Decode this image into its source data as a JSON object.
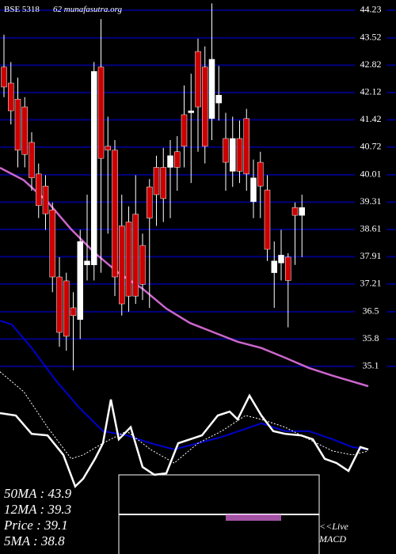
{
  "chart_data": {
    "type": "candlestick",
    "title": "BSE 5318",
    "subtitle": "62 munafasutra.org",
    "ylim": [
      30.29,
      44.49
    ],
    "xlim": [
      -0.6,
      53
    ],
    "yticks": [
      44.23,
      43.52,
      42.82,
      42.12,
      41.42,
      40.72,
      40.01,
      39.31,
      38.61,
      37.91,
      37.21,
      36.5,
      35.8,
      35.1
    ],
    "grid": true,
    "grid_color": "#000080",
    "up_color": "#ffffff",
    "down_color": "#cc0000",
    "open": [
      42.77,
      42.36,
      41.95,
      41.75,
      40.84,
      40.03,
      39.72,
      39.11,
      37.39,
      37.29,
      36.6,
      36.3,
      37.7,
      37.7,
      42.77,
      40.74,
      40.64,
      38.7,
      38.8,
      39.0,
      38.2,
      39.7,
      40.2,
      40.2,
      40.2,
      40.6,
      41.55,
      41.6,
      43.17,
      42.77,
      41.45,
      41.85,
      40.94,
      40.1,
      40.94,
      41.45,
      39.32,
      40.33,
      39.62,
      37.5,
      37.75,
      37.9,
      39.17,
      38.97
    ],
    "high": [
      43.6,
      42.9,
      42.5,
      42.0,
      41.1,
      40.3,
      40.0,
      39.3,
      37.9,
      37.5,
      37.0,
      38.6,
      39.5,
      42.9,
      44.0,
      41.5,
      40.9,
      39.5,
      39.2,
      40.0,
      38.5,
      39.9,
      40.5,
      40.7,
      40.9,
      41.0,
      42.3,
      42.6,
      43.5,
      43.3,
      44.4,
      42.8,
      41.6,
      41.5,
      41.4,
      41.7,
      40.4,
      40.6,
      40.0,
      38.3,
      38.6,
      38.0,
      39.3,
      39.5
    ],
    "low": [
      42.0,
      41.3,
      40.2,
      40.2,
      39.6,
      38.9,
      38.6,
      37.0,
      35.6,
      35.5,
      35.0,
      35.8,
      37.3,
      37.3,
      37.5,
      38.5,
      36.9,
      36.4,
      36.5,
      36.7,
      36.8,
      36.6,
      38.7,
      38.8,
      38.9,
      39.6,
      40.2,
      39.8,
      40.6,
      40.3,
      40.9,
      41.4,
      39.6,
      39.7,
      39.8,
      39.6,
      38.9,
      38.9,
      37.8,
      36.6,
      37.3,
      36.1,
      37.7,
      37.9
    ],
    "close": [
      42.26,
      41.65,
      40.64,
      40.53,
      39.93,
      39.22,
      39.01,
      37.39,
      35.97,
      35.87,
      36.4,
      38.3,
      37.8,
      42.66,
      40.43,
      40.64,
      37.39,
      36.7,
      36.9,
      36.9,
      37.2,
      38.9,
      39.5,
      39.4,
      40.5,
      40.2,
      40.74,
      41.65,
      41.75,
      40.74,
      42.97,
      42.05,
      40.33,
      40.94,
      40.1,
      40.03,
      39.93,
      39.72,
      38.1,
      37.8,
      37.95,
      37.3,
      38.97,
      39.17
    ],
    "lines": [
      {
        "color": "#cc66cc",
        "width": 2.5,
        "x": [
          -0.57,
          2.86,
          6.29,
          9.71,
          13.14,
          16.57,
          20,
          23.43,
          26.86,
          30.29,
          33.71,
          37.14,
          40.57,
          44,
          47.43,
          52.57
        ],
        "values": [
          40.19,
          39.87,
          39.32,
          38.61,
          38.0,
          37.49,
          37.09,
          36.58,
          36.21,
          35.97,
          35.73,
          35.57,
          35.32,
          35.06,
          34.86,
          34.59
        ]
      },
      {
        "color": "#0000cc",
        "width": 2,
        "x": [
          -0.57,
          1.14,
          4,
          7.43,
          10.86,
          14.29,
          17.71,
          21.14,
          24.57,
          28,
          31.43,
          34.86,
          37.14,
          40.57,
          44,
          47.43,
          50.29,
          52.57
        ],
        "values": [
          36.27,
          36.17,
          35.57,
          34.75,
          34.04,
          33.44,
          33.33,
          33.13,
          32.97,
          33.13,
          33.29,
          33.5,
          33.64,
          33.44,
          33.44,
          33.23,
          33.03,
          32.97
        ]
      },
      {
        "color": "#ffffff",
        "width": 2.5,
        "x": [
          -0.57,
          1.71,
          4,
          6.29,
          8.57,
          10.29,
          11.43,
          13.14,
          14.29,
          15.43,
          16.57,
          18.29,
          20,
          21.71,
          23.43,
          25.14,
          26.86,
          28.57,
          30.86,
          32.57,
          33.71,
          35.43,
          37.14,
          38.86,
          40.57,
          42.86,
          44.57,
          46.29,
          48,
          49.71,
          51.43,
          52.57
        ],
        "values": [
          33.9,
          33.84,
          33.37,
          33.33,
          32.83,
          32.02,
          32.22,
          32.73,
          33.13,
          34.25,
          33.23,
          33.54,
          32.52,
          32.32,
          32.36,
          33.13,
          33.23,
          33.33,
          33.84,
          33.94,
          33.74,
          34.35,
          33.84,
          33.44,
          33.37,
          33.33,
          33.23,
          32.73,
          32.62,
          32.42,
          33.03,
          32.97
        ]
      },
      {
        "color": "#ffffff",
        "width": 1,
        "dash": "2,2",
        "x": [
          -0.57,
          2.86,
          6.29,
          9.71,
          11.43,
          14.29,
          17.71,
          21.14,
          24.57,
          28,
          31.43,
          34.86,
          37.14,
          40.57,
          44,
          47.43,
          50.29,
          52.57
        ],
        "values": [
          34.96,
          34.45,
          33.54,
          32.73,
          32.83,
          33.13,
          33.44,
          32.97,
          32.62,
          33.13,
          33.44,
          33.84,
          33.74,
          33.54,
          33.23,
          32.93,
          32.83,
          32.93
        ]
      }
    ],
    "info": [
      "50MA : 43.9",
      "12MA : 39.3",
      "Price  : 39.1",
      "5MA : 38.8"
    ],
    "macd_label": [
      "<<Live",
      "MACD"
    ]
  }
}
